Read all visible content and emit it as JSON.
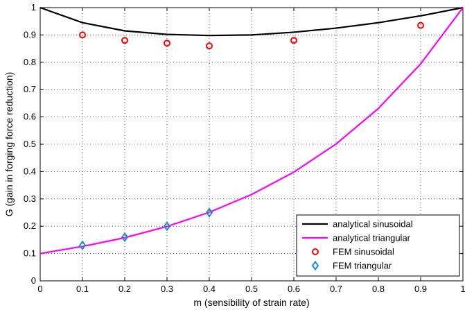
{
  "chart_data": {
    "type": "line",
    "title": "",
    "xlabel": "m (sensibility of strain rate)",
    "ylabel": "G (gain in forging force reduction)",
    "xlim": [
      0,
      1
    ],
    "ylim": [
      0,
      1
    ],
    "xticks": [
      0,
      0.1,
      0.2,
      0.3,
      0.4,
      0.5,
      0.6,
      0.7,
      0.8,
      0.9,
      1
    ],
    "yticks": [
      0,
      0.1,
      0.2,
      0.3,
      0.4,
      0.5,
      0.6,
      0.7,
      0.8,
      0.9,
      1
    ],
    "xtick_labels": [
      "0",
      "0.1",
      "0.2",
      "0.3",
      "0.4",
      "0.5",
      "0.6",
      "0.7",
      "0.8",
      "0.9",
      "1"
    ],
    "ytick_labels": [
      "0",
      "0.1",
      "0.2",
      "0.3",
      "0.4",
      "0.5",
      "0.6",
      "0.7",
      "0.8",
      "0.9",
      "1"
    ],
    "grid": true,
    "legend_position": "bottom-right",
    "series": [
      {
        "name": "analytical sinusoidal",
        "kind": "line",
        "color": "#000000",
        "x": [
          0,
          0.1,
          0.2,
          0.3,
          0.4,
          0.5,
          0.6,
          0.7,
          0.8,
          0.9,
          1
        ],
        "y": [
          1.0,
          0.945,
          0.915,
          0.902,
          0.898,
          0.9,
          0.91,
          0.925,
          0.945,
          0.97,
          1.0
        ]
      },
      {
        "name": "analytical triangular",
        "kind": "line",
        "color": "#ff00ff",
        "x": [
          0,
          0.1,
          0.2,
          0.3,
          0.4,
          0.5,
          0.6,
          0.7,
          0.8,
          0.9,
          1
        ],
        "y": [
          0.1,
          0.126,
          0.158,
          0.199,
          0.251,
          0.316,
          0.398,
          0.501,
          0.631,
          0.794,
          1.0
        ]
      },
      {
        "name": "FEM sinusoidal",
        "kind": "marker-circle",
        "color": "#ff0000",
        "x": [
          0.1,
          0.2,
          0.3,
          0.4,
          0.6,
          0.9
        ],
        "y": [
          0.9,
          0.88,
          0.87,
          0.86,
          0.88,
          0.935
        ]
      },
      {
        "name": "FEM triangular",
        "kind": "marker-diamond",
        "color": "#1a8fc9",
        "x": [
          0.1,
          0.2,
          0.3,
          0.4
        ],
        "y": [
          0.13,
          0.16,
          0.2,
          0.25
        ]
      }
    ]
  }
}
